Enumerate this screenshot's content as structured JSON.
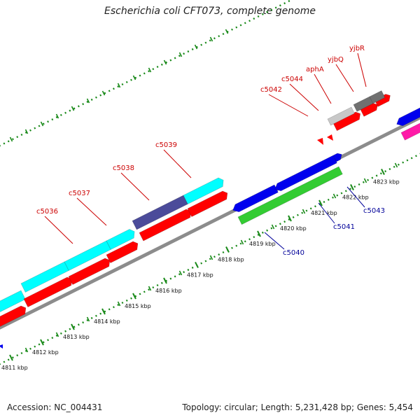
{
  "title": "Escherichia coli CFT073, complete genome",
  "footer": {
    "accession": "Accession: NC_004431",
    "stats": "Topology: circular; Length: 5,231,428 bp; Genes: 5,454"
  },
  "colors": {
    "forward_gene": "#ff0000",
    "reverse_gene": "#0000ee",
    "forward_label": "#cc0000",
    "reverse_label": "#000099",
    "backbone": "#8c8c8c",
    "tick": "#1a8a1a",
    "cyan_feature": "#00ffff",
    "indigo_feature": "#4b4b9a",
    "green_feature": "#33cc33",
    "gray_feature": "#c8c8c8",
    "dark_gray_feature": "#707070",
    "magenta_feature": "#ff1aa8"
  },
  "scale_labels": [
    "4811 kbp",
    "4812 kbp",
    "4813 kbp",
    "4814 kbp",
    "4815 kbp",
    "4816 kbp",
    "4817 kbp",
    "4818 kbp",
    "4819 kbp",
    "4820 kbp",
    "4821 kbp",
    "4822 kbp",
    "4823 kbp"
  ],
  "labels_upper": [
    "c5036",
    "c5037",
    "c5038",
    "c5039",
    "c5042",
    "c5044",
    "aphA",
    "yjbQ",
    "yjbR"
  ],
  "labels_lower": [
    "c5040",
    "c5041",
    "c5043"
  ]
}
